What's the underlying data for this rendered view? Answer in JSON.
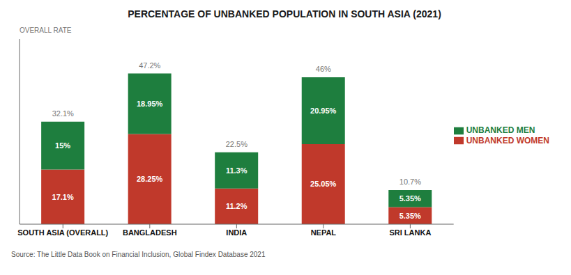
{
  "chart_data": {
    "type": "bar",
    "title": "PERCENTAGE OF UNBANKED POPULATION IN SOUTH ASIA (2021)",
    "categories": [
      "SOUTH ASIA (OVERALL)",
      "BANGLADESH",
      "INDIA",
      "NEPAL",
      "SRI LANKA"
    ],
    "series": [
      {
        "name": "UNBANKED WOMEN",
        "color": "#c0392b",
        "values": [
          17.1,
          28.25,
          11.2,
          25.05,
          5.35
        ],
        "value_labels": [
          "17.1%",
          "28.25%",
          "11.2%",
          "25.05%",
          "5.35%"
        ]
      },
      {
        "name": "UNBANKED MEN",
        "color": "#1e7e3e",
        "values": [
          15.0,
          18.95,
          11.3,
          20.95,
          5.35
        ],
        "value_labels": [
          "15%",
          "18.95%",
          "11.3%",
          "20.95%",
          "5.35%"
        ]
      }
    ],
    "totals": {
      "title": "OVERALL RATE",
      "values": [
        32.1,
        47.2,
        22.5,
        46,
        10.7
      ],
      "labels": [
        "32.1%",
        "47.2%",
        "22.5%",
        "46%",
        "10.7%"
      ]
    },
    "stacked": true,
    "data_labels": true,
    "ylim": [
      0,
      58
    ],
    "tick_labels": "x",
    "grid": false,
    "legend": "right",
    "source": "Source: The Little Data Book on Financial Inclusion, Global Findex Database 2021"
  }
}
